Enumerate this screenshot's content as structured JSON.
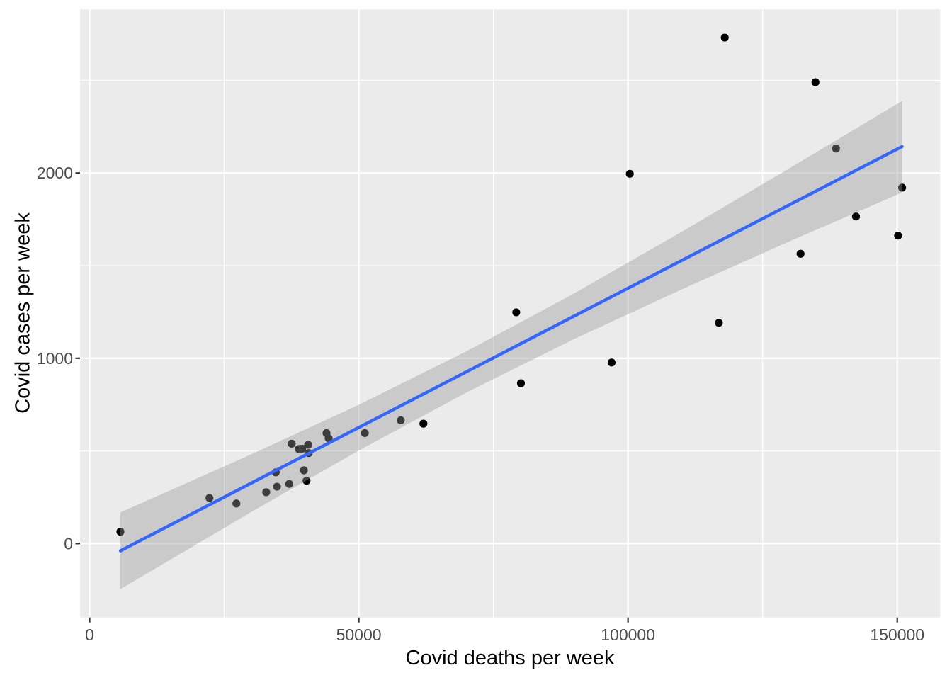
{
  "chart_data": {
    "type": "scatter",
    "xlabel": "Covid deaths per week",
    "ylabel": "Covid cases per week",
    "x_ticks": [
      0,
      50000,
      100000,
      150000
    ],
    "x_tick_labels": [
      "0",
      "50000",
      "100000",
      "150000"
    ],
    "x_minor_ticks": [
      25000,
      75000,
      125000
    ],
    "y_ticks": [
      0,
      1000,
      2000
    ],
    "y_tick_labels": [
      "0",
      "1000",
      "2000"
    ],
    "y_minor_ticks": [
      500,
      1500,
      2500
    ],
    "xlim": [
      -1780,
      157970
    ],
    "ylim": [
      -399,
      2883
    ],
    "grid": true,
    "legend": "none",
    "points": [
      [
        5720,
        64
      ],
      [
        22260,
        246
      ],
      [
        27260,
        216
      ],
      [
        32800,
        277
      ],
      [
        34580,
        384
      ],
      [
        34800,
        307
      ],
      [
        37080,
        322
      ],
      [
        37530,
        539
      ],
      [
        38840,
        510
      ],
      [
        39500,
        512
      ],
      [
        39800,
        395
      ],
      [
        40290,
        339
      ],
      [
        40700,
        488
      ],
      [
        40600,
        533
      ],
      [
        44000,
        596
      ],
      [
        44400,
        568
      ],
      [
        51120,
        596
      ],
      [
        57790,
        665
      ],
      [
        62000,
        647
      ],
      [
        79240,
        1248
      ],
      [
        80110,
        865
      ],
      [
        96950,
        977
      ],
      [
        100330,
        1996
      ],
      [
        116870,
        1191
      ],
      [
        117960,
        2731
      ],
      [
        132040,
        1564
      ],
      [
        134810,
        2490
      ],
      [
        138620,
        2132
      ],
      [
        142340,
        1765
      ],
      [
        150160,
        1662
      ],
      [
        150900,
        1921
      ]
    ],
    "trend_line": {
      "type": "linear",
      "x": [
        5720,
        150900
      ],
      "y": [
        -39,
        2143
      ]
    },
    "ci_ribbon": {
      "x": [
        5720,
        30000,
        50000,
        69900,
        90000,
        110000,
        130000,
        150900
      ],
      "upper": [
        168,
        481,
        749,
        1036,
        1350,
        1683,
        2026,
        2389
      ],
      "lower": [
        -246,
        170,
        502,
        814,
        1104,
        1372,
        1631,
        1895
      ]
    },
    "colors": {
      "point": "#000000",
      "trend": "#3366FF",
      "ribbon": "rgba(153,153,153,0.40)",
      "panel_bg": "#EBEBEB",
      "grid": "#FFFFFF",
      "tick_label": "#4D4D4D",
      "tick_mark": "#333333",
      "axis_title": "#000000",
      "outer_bg": "#FFFFFF"
    }
  }
}
